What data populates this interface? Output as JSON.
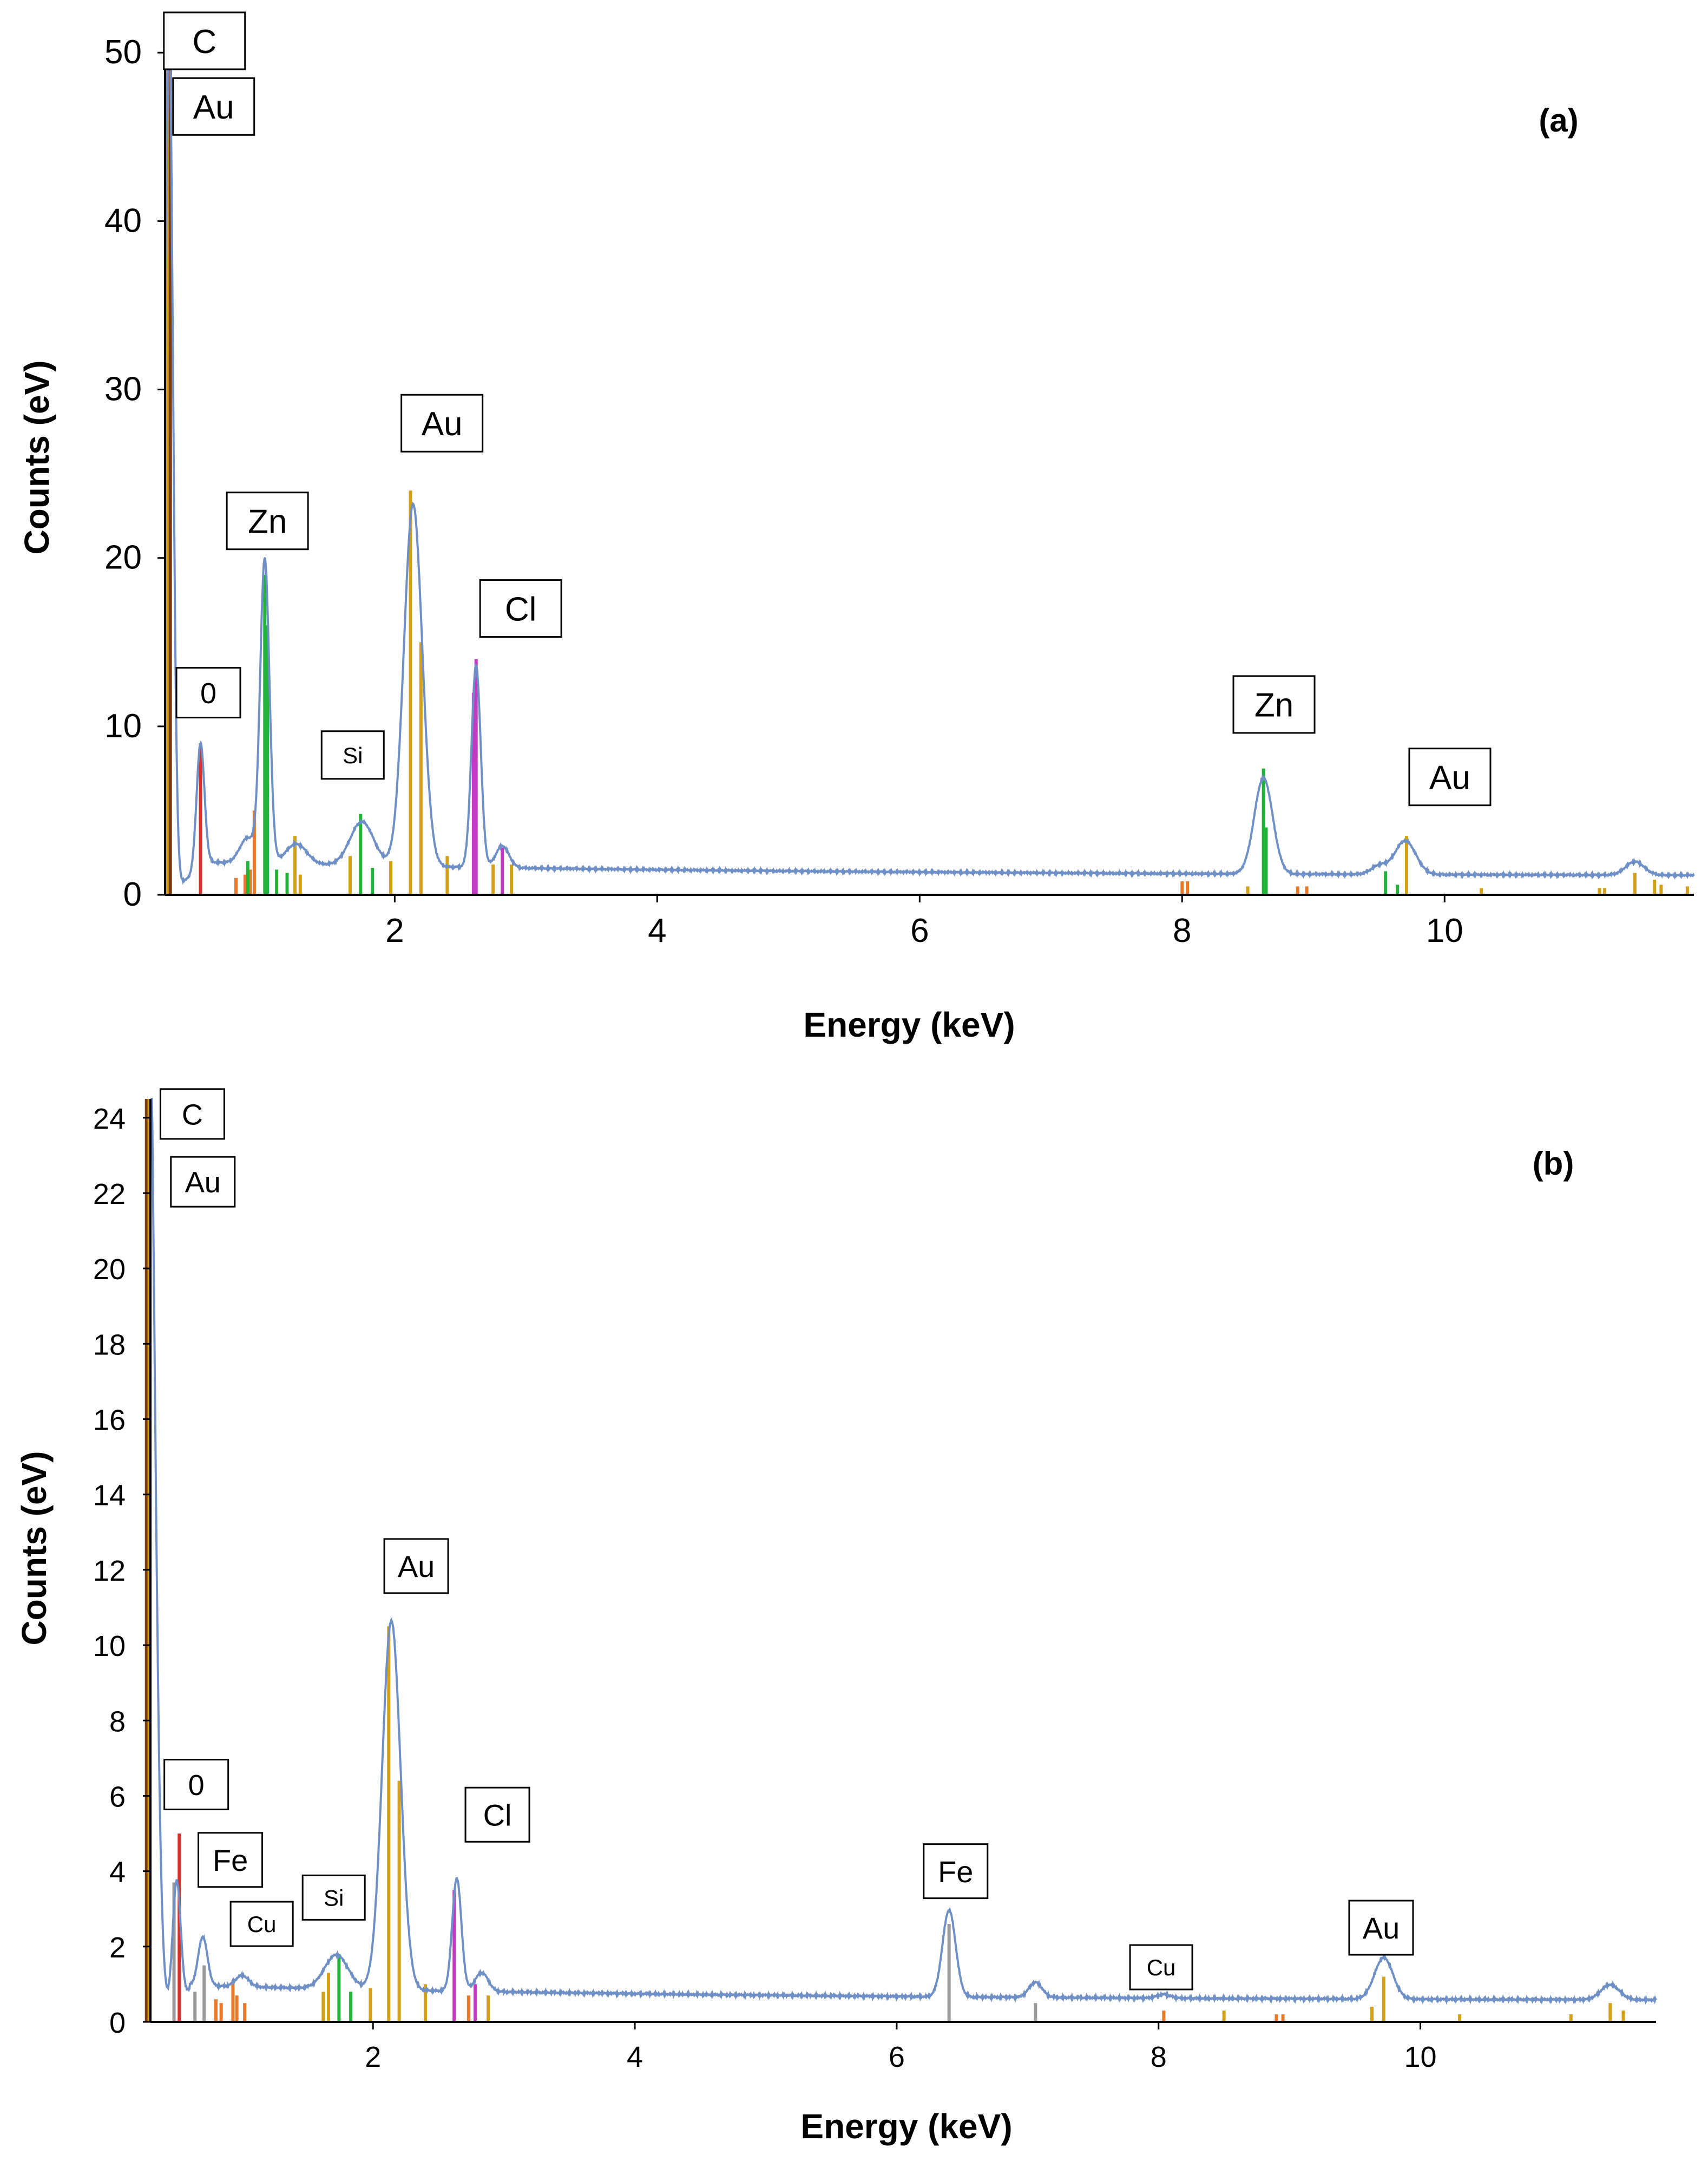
{
  "chart_data": [
    {
      "type": "line",
      "panel_label": "(a)",
      "xlabel": "Energy (keV)",
      "ylabel": "Counts (eV)",
      "xlim": [
        0.25,
        11.9
      ],
      "ylim": [
        0,
        52
      ],
      "xticks": [
        2,
        4,
        6,
        8,
        10
      ],
      "yticks": [
        0,
        10,
        20,
        30,
        40,
        50
      ],
      "xtick_labels": [
        "2",
        "4",
        "6",
        "8",
        "10"
      ],
      "ytick_labels": [
        "0",
        "10",
        "20",
        "30",
        "40",
        "50"
      ],
      "background": 2.0,
      "peaks": [
        {
          "center": 0.28,
          "height": 52,
          "width": 0.03
        },
        {
          "center": 0.52,
          "height": 7.5,
          "width": 0.03
        },
        {
          "center": 0.88,
          "height": 1.5,
          "width": 0.06
        },
        {
          "center": 1.01,
          "height": 18.0,
          "width": 0.035
        },
        {
          "center": 1.25,
          "height": 1.2,
          "width": 0.08
        },
        {
          "center": 1.75,
          "height": 2.6,
          "width": 0.09
        },
        {
          "center": 2.14,
          "height": 21.5,
          "width": 0.07
        },
        {
          "center": 2.62,
          "height": 12.0,
          "width": 0.035
        },
        {
          "center": 2.82,
          "height": 1.3,
          "width": 0.05
        },
        {
          "center": 8.62,
          "height": 5.7,
          "width": 0.07
        },
        {
          "center": 9.5,
          "height": 0.5,
          "width": 0.06
        },
        {
          "center": 9.7,
          "height": 2.0,
          "width": 0.08
        },
        {
          "center": 11.45,
          "height": 0.8,
          "width": 0.07
        }
      ],
      "markers": [
        {
          "x": 0.27,
          "h": 52,
          "color": "#d4a017"
        },
        {
          "x": 0.29,
          "h": 52,
          "color": "#7a3b10"
        },
        {
          "x": 0.52,
          "h": 9.0,
          "color": "#d9302c"
        },
        {
          "x": 0.79,
          "h": 1.0,
          "color": "#e8792a"
        },
        {
          "x": 0.86,
          "h": 1.2,
          "color": "#e8792a"
        },
        {
          "x": 0.9,
          "h": 1.5,
          "color": "#e8792a"
        },
        {
          "x": 0.93,
          "h": 5.0,
          "color": "#e8792a"
        },
        {
          "x": 0.88,
          "h": 2.0,
          "color": "#22b33a"
        },
        {
          "x": 1.01,
          "h": 19.0,
          "color": "#22b33a"
        },
        {
          "x": 1.03,
          "h": 16.0,
          "color": "#22b33a"
        },
        {
          "x": 1.1,
          "h": 1.5,
          "color": "#22b33a"
        },
        {
          "x": 1.18,
          "h": 1.3,
          "color": "#22b33a"
        },
        {
          "x": 1.24,
          "h": 3.5,
          "color": "#d4a017"
        },
        {
          "x": 1.28,
          "h": 1.2,
          "color": "#d4a017"
        },
        {
          "x": 1.66,
          "h": 2.3,
          "color": "#d4a017"
        },
        {
          "x": 1.74,
          "h": 4.8,
          "color": "#22b33a"
        },
        {
          "x": 1.83,
          "h": 1.6,
          "color": "#22b33a"
        },
        {
          "x": 1.97,
          "h": 2.0,
          "color": "#d4a017"
        },
        {
          "x": 2.12,
          "h": 24.0,
          "color": "#d4a017"
        },
        {
          "x": 2.2,
          "h": 15.0,
          "color": "#d4a017"
        },
        {
          "x": 2.4,
          "h": 2.3,
          "color": "#d4a017"
        },
        {
          "x": 2.6,
          "h": 12.0,
          "color": "#c23ac2"
        },
        {
          "x": 2.62,
          "h": 14.0,
          "color": "#c23ac2"
        },
        {
          "x": 2.82,
          "h": 2.8,
          "color": "#c23ac2"
        },
        {
          "x": 2.75,
          "h": 1.8,
          "color": "#d4a017"
        },
        {
          "x": 2.89,
          "h": 1.8,
          "color": "#d4a017"
        },
        {
          "x": 8.0,
          "h": 0.8,
          "color": "#e8792a"
        },
        {
          "x": 8.04,
          "h": 0.8,
          "color": "#e8792a"
        },
        {
          "x": 8.5,
          "h": 0.5,
          "color": "#d4a017"
        },
        {
          "x": 8.62,
          "h": 7.5,
          "color": "#22b33a"
        },
        {
          "x": 8.64,
          "h": 4.0,
          "color": "#22b33a"
        },
        {
          "x": 8.88,
          "h": 0.5,
          "color": "#e8792a"
        },
        {
          "x": 8.95,
          "h": 0.5,
          "color": "#e8792a"
        },
        {
          "x": 9.55,
          "h": 1.4,
          "color": "#22b33a"
        },
        {
          "x": 9.64,
          "h": 0.6,
          "color": "#22b33a"
        },
        {
          "x": 9.71,
          "h": 3.5,
          "color": "#d4a017"
        },
        {
          "x": 10.28,
          "h": 0.4,
          "color": "#d4a017"
        },
        {
          "x": 11.18,
          "h": 0.4,
          "color": "#d4a017"
        },
        {
          "x": 11.22,
          "h": 0.4,
          "color": "#d4a017"
        },
        {
          "x": 11.45,
          "h": 1.3,
          "color": "#d4a017"
        },
        {
          "x": 11.6,
          "h": 0.9,
          "color": "#d4a017"
        },
        {
          "x": 11.65,
          "h": 0.6,
          "color": "#d4a017"
        },
        {
          "x": 11.85,
          "h": 0.5,
          "color": "#d4a017"
        }
      ],
      "annotations": [
        {
          "text": "C",
          "x": 0.55,
          "y": 50.7,
          "size": "large"
        },
        {
          "text": "Au",
          "x": 0.62,
          "y": 46.8,
          "size": "large"
        },
        {
          "text": "0",
          "x": 0.58,
          "y": 12.0,
          "size": "medium"
        },
        {
          "text": "Zn",
          "x": 1.03,
          "y": 22.2,
          "size": "large"
        },
        {
          "text": "Si",
          "x": 1.68,
          "y": 8.3,
          "size": "small"
        },
        {
          "text": "Au",
          "x": 2.36,
          "y": 28.0,
          "size": "large"
        },
        {
          "text": "Cl",
          "x": 2.96,
          "y": 17.0,
          "size": "large"
        },
        {
          "text": "Zn",
          "x": 8.7,
          "y": 11.3,
          "size": "large"
        },
        {
          "text": "Au",
          "x": 10.04,
          "y": 7.0,
          "size": "large"
        }
      ]
    },
    {
      "type": "line",
      "panel_label": "(b)",
      "xlabel": "Energy (keV)",
      "ylabel": "Counts (eV)",
      "xlim": [
        0.3,
        11.8
      ],
      "ylim": [
        0,
        24.5
      ],
      "xticks": [
        2,
        4,
        6,
        8,
        10
      ],
      "yticks": [
        0,
        2,
        4,
        6,
        8,
        10,
        12,
        14,
        16,
        18,
        20,
        22,
        24
      ],
      "xtick_labels": [
        "2",
        "4",
        "6",
        "8",
        "10"
      ],
      "ytick_labels": [
        "0",
        "2",
        "4",
        "6",
        "8",
        "10",
        "12",
        "14",
        "16",
        "18",
        "20",
        "22",
        "24"
      ],
      "background": 1.0,
      "peaks": [
        {
          "center": 0.28,
          "height": 30,
          "width": 0.05
        },
        {
          "center": 0.5,
          "height": 3.2,
          "width": 0.03
        },
        {
          "center": 0.7,
          "height": 1.3,
          "width": 0.035
        },
        {
          "center": 1.0,
          "height": 0.3,
          "width": 0.05
        },
        {
          "center": 1.72,
          "height": 0.9,
          "width": 0.09
        },
        {
          "center": 2.14,
          "height": 9.8,
          "width": 0.07
        },
        {
          "center": 2.64,
          "height": 3.0,
          "width": 0.035
        },
        {
          "center": 2.83,
          "height": 0.5,
          "width": 0.05
        },
        {
          "center": 6.4,
          "height": 2.3,
          "width": 0.05
        },
        {
          "center": 7.06,
          "height": 0.4,
          "width": 0.05
        },
        {
          "center": 8.04,
          "height": 0.1,
          "width": 0.05
        },
        {
          "center": 9.72,
          "height": 1.1,
          "width": 0.07
        },
        {
          "center": 11.45,
          "height": 0.4,
          "width": 0.07
        }
      ],
      "markers": [
        {
          "x": 0.27,
          "h": 24.5,
          "color": "#7a3b10"
        },
        {
          "x": 0.29,
          "h": 24.5,
          "color": "#d4a017"
        },
        {
          "x": 0.48,
          "h": 3.7,
          "color": "#9a9a9a"
        },
        {
          "x": 0.52,
          "h": 5.0,
          "color": "#d9302c"
        },
        {
          "x": 0.64,
          "h": 0.8,
          "color": "#9a9a9a"
        },
        {
          "x": 0.71,
          "h": 1.5,
          "color": "#9a9a9a"
        },
        {
          "x": 0.8,
          "h": 0.6,
          "color": "#e8792a"
        },
        {
          "x": 0.84,
          "h": 0.5,
          "color": "#e8792a"
        },
        {
          "x": 0.93,
          "h": 1.1,
          "color": "#e8792a"
        },
        {
          "x": 0.96,
          "h": 0.7,
          "color": "#e8792a"
        },
        {
          "x": 1.02,
          "h": 0.5,
          "color": "#e8792a"
        },
        {
          "x": 1.62,
          "h": 0.8,
          "color": "#d4a017"
        },
        {
          "x": 1.66,
          "h": 1.3,
          "color": "#d4a017"
        },
        {
          "x": 1.74,
          "h": 1.8,
          "color": "#22b33a"
        },
        {
          "x": 1.83,
          "h": 0.8,
          "color": "#22b33a"
        },
        {
          "x": 1.98,
          "h": 0.9,
          "color": "#d4a017"
        },
        {
          "x": 2.12,
          "h": 10.5,
          "color": "#d4a017"
        },
        {
          "x": 2.2,
          "h": 6.4,
          "color": "#d4a017"
        },
        {
          "x": 2.4,
          "h": 1.0,
          "color": "#d4a017"
        },
        {
          "x": 2.62,
          "h": 3.5,
          "color": "#c23ac2"
        },
        {
          "x": 2.73,
          "h": 0.7,
          "color": "#e8792a"
        },
        {
          "x": 2.78,
          "h": 1.0,
          "color": "#c23ac2"
        },
        {
          "x": 2.88,
          "h": 0.7,
          "color": "#d4a017"
        },
        {
          "x": 6.4,
          "h": 2.6,
          "color": "#9a9a9a"
        },
        {
          "x": 7.06,
          "h": 0.5,
          "color": "#9a9a9a"
        },
        {
          "x": 8.04,
          "h": 0.3,
          "color": "#e8792a"
        },
        {
          "x": 8.5,
          "h": 0.3,
          "color": "#d4a017"
        },
        {
          "x": 8.9,
          "h": 0.2,
          "color": "#e8792a"
        },
        {
          "x": 8.95,
          "h": 0.2,
          "color": "#e8792a"
        },
        {
          "x": 9.63,
          "h": 0.4,
          "color": "#d4a017"
        },
        {
          "x": 9.72,
          "h": 1.2,
          "color": "#d4a017"
        },
        {
          "x": 10.3,
          "h": 0.2,
          "color": "#d4a017"
        },
        {
          "x": 11.15,
          "h": 0.2,
          "color": "#d4a017"
        },
        {
          "x": 11.45,
          "h": 0.5,
          "color": "#d4a017"
        },
        {
          "x": 11.55,
          "h": 0.3,
          "color": "#d4a017"
        }
      ],
      "annotations": [
        {
          "text": "C",
          "x": 0.62,
          "y": 24.1,
          "size": "medium"
        },
        {
          "text": "Au",
          "x": 0.7,
          "y": 22.3,
          "size": "medium"
        },
        {
          "text": "0",
          "x": 0.65,
          "y": 6.3,
          "size": "medium"
        },
        {
          "text": "Fe",
          "x": 0.91,
          "y": 4.3,
          "size": "large"
        },
        {
          "text": "Cu",
          "x": 1.15,
          "y": 2.6,
          "size": "small"
        },
        {
          "text": "Si",
          "x": 1.7,
          "y": 3.3,
          "size": "small"
        },
        {
          "text": "Au",
          "x": 2.33,
          "y": 12.1,
          "size": "large"
        },
        {
          "text": "Cl",
          "x": 2.95,
          "y": 5.5,
          "size": "large"
        },
        {
          "text": "Fe",
          "x": 6.45,
          "y": 4.0,
          "size": "large"
        },
        {
          "text": "Cu",
          "x": 8.02,
          "y": 1.45,
          "size": "small"
        },
        {
          "text": "Au",
          "x": 9.7,
          "y": 2.5,
          "size": "large"
        }
      ]
    }
  ]
}
